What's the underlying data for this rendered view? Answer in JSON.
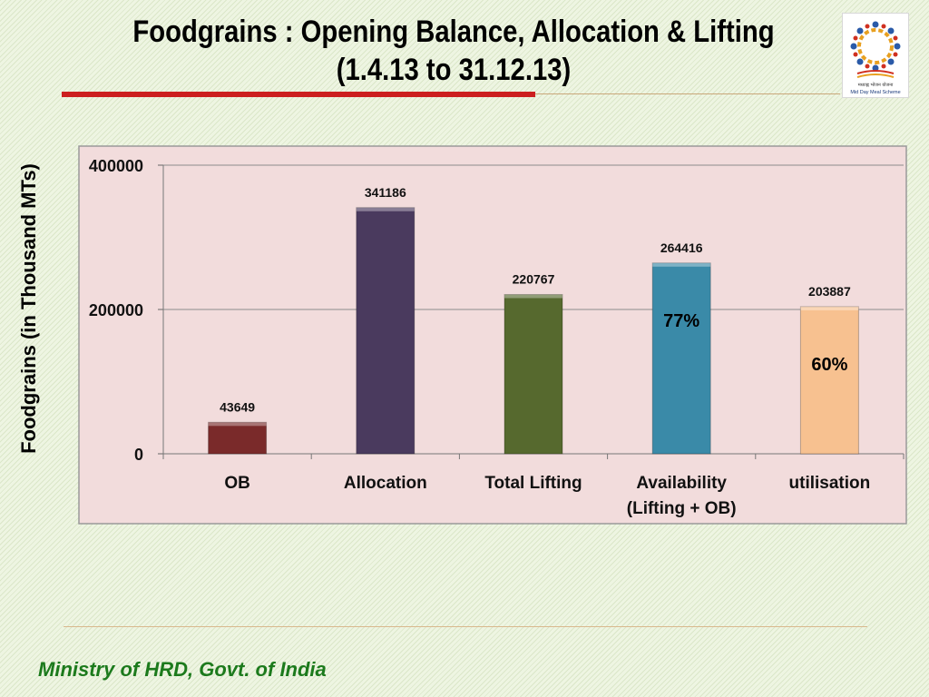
{
  "slide": {
    "title_line1": "Foodgrains : Opening Balance, Allocation & Lifting",
    "title_line2": "(1.4.13 to 31.12.13)",
    "footer": "Ministry of HRD, Govt. of India",
    "logo_text_hindi": "मध्याह्न भोजन योजना",
    "logo_text_english": "Mid Day Meal Scheme"
  },
  "chart_data": {
    "type": "bar",
    "title": "",
    "xlabel": "",
    "ylabel": "Foodgrains (in Thousand MTs)",
    "ylim": [
      0,
      400000
    ],
    "yticks": [
      0,
      200000,
      400000
    ],
    "ytick_labels": [
      "0",
      "200000",
      "400000"
    ],
    "grid": true,
    "legend": false,
    "categories": [
      [
        "OB"
      ],
      [
        "Allocation"
      ],
      [
        "Total Lifting"
      ],
      [
        "Availability",
        "(Lifting + OB)"
      ],
      [
        "utilisation"
      ]
    ],
    "values": [
      43649,
      341186,
      220767,
      264416,
      203887
    ],
    "data_labels": [
      "43649",
      "341186",
      "220767",
      "264416",
      "203887"
    ],
    "colors": [
      "#7a2a2a",
      "#4a3a5e",
      "#56692e",
      "#3a8aa8",
      "#f7c190"
    ],
    "annotations": [
      {
        "category_index": 3,
        "text": "77%"
      },
      {
        "category_index": 4,
        "text": "60%"
      }
    ],
    "plot_background": "#f2dcdc"
  }
}
